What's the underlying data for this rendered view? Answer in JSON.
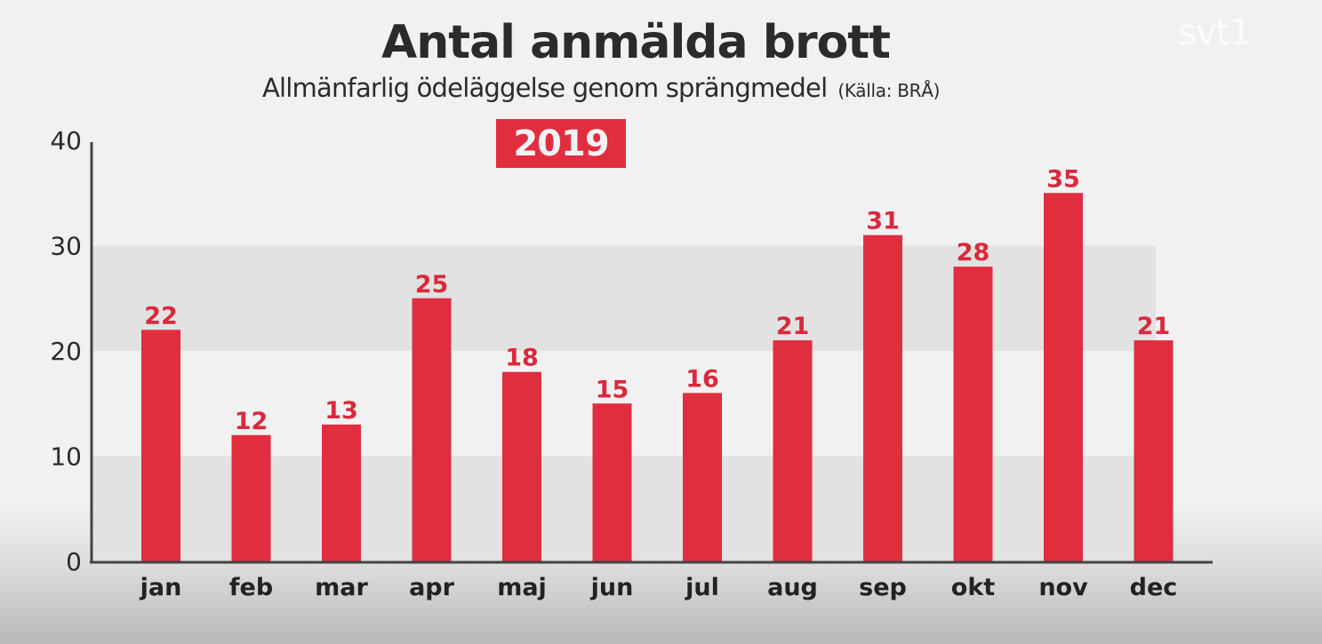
{
  "header": {
    "title": "Antal anmälda brott",
    "subtitle": "Allmänfarlig ödeläggelse genom sprängmedel",
    "source": "(Källa: BRÅ)",
    "year_badge": "2019",
    "channel_logo": "svt1"
  },
  "colors": {
    "bar": "#e02e3f",
    "label": "#d92a3c",
    "band": "#e2e2e2",
    "axis": "#444444",
    "background": "#f1f1f1"
  },
  "chart_data": {
    "type": "bar",
    "title": "Antal anmälda brott",
    "subtitle": "Allmänfarlig ödeläggelse genom sprängmedel (Källa: BRÅ)",
    "xlabel": "",
    "ylabel": "",
    "categories": [
      "jan",
      "feb",
      "mar",
      "apr",
      "maj",
      "jun",
      "jul",
      "aug",
      "sep",
      "okt",
      "nov",
      "dec"
    ],
    "values": [
      22,
      12,
      13,
      25,
      18,
      15,
      16,
      21,
      31,
      28,
      35,
      21
    ],
    "data_labels": [
      "22",
      "12",
      "13",
      "25",
      "18",
      "15",
      "16",
      "21",
      "31",
      "28",
      "35",
      "21"
    ],
    "ylim": [
      0,
      40
    ],
    "yticks": [
      0,
      10,
      20,
      30,
      40
    ],
    "grid": "alternating horizontal bands",
    "legend": "none",
    "annotation": "2019"
  }
}
